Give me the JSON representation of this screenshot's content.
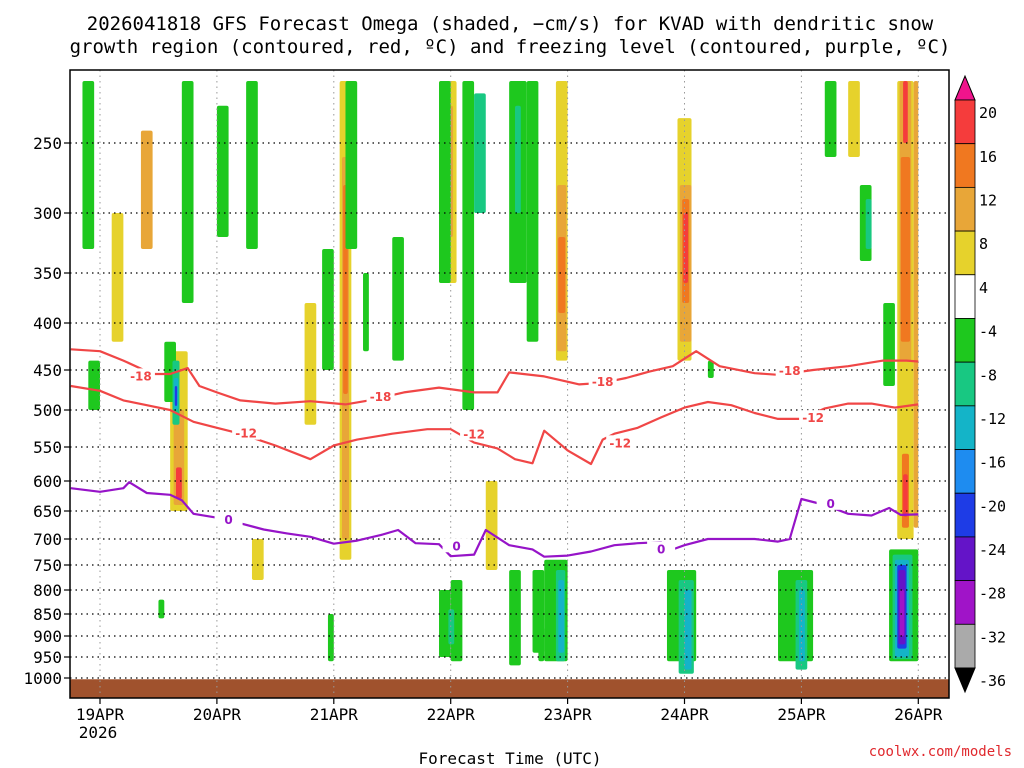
{
  "chart_data": {
    "type": "heatmap",
    "title_lines": [
      "2026041818 GFS Forecast Omega (shaded, −cm/s) for KVAD with dendritic snow",
      "growth region (contoured, red, ºC) and freezing level (contoured, purple, ºC)"
    ],
    "xlabel": "Forecast Time (UTC)",
    "x_ticks": [
      "19APR",
      "20APR",
      "21APR",
      "22APR",
      "23APR",
      "24APR",
      "25APR",
      "26APR"
    ],
    "x_year_label": "2026",
    "x_range_days": [
      -0.25,
      7.0
    ],
    "y_ticks": [
      250,
      300,
      350,
      400,
      450,
      500,
      550,
      600,
      650,
      700,
      750,
      800,
      850,
      900,
      950,
      1000
    ],
    "y_range_hpa": [
      200,
      1000
    ],
    "colorbar": {
      "labels": [
        "20",
        "16",
        "12",
        "8",
        "4",
        "-4",
        "-8",
        "-12",
        "-16",
        "-20",
        "-24",
        "-28",
        "-32",
        "-36"
      ],
      "colors": [
        "#f0148c",
        "#f53c3c",
        "#f07820",
        "#e8a638",
        "#e6d22c",
        "#ffffff",
        "#1ec81e",
        "#18c882",
        "#14b4c8",
        "#1e8cf0",
        "#1e3ce6",
        "#6414c8",
        "#a014c8",
        "#aaaaaa",
        "#000000"
      ]
    },
    "series": [
      {
        "name": "-18 C isotherm",
        "color": "#f04646",
        "label": "-18",
        "points": [
          [
            -0.25,
            428
          ],
          [
            0.0,
            430
          ],
          [
            0.2,
            440
          ],
          [
            0.45,
            455
          ],
          [
            0.6,
            455
          ],
          [
            0.75,
            448
          ],
          [
            0.85,
            470
          ],
          [
            1.0,
            478
          ],
          [
            1.2,
            488
          ],
          [
            1.5,
            492
          ],
          [
            1.8,
            489
          ],
          [
            2.1,
            493
          ],
          [
            2.3,
            488
          ],
          [
            2.6,
            478
          ],
          [
            2.9,
            472
          ],
          [
            3.2,
            478
          ],
          [
            3.4,
            478
          ],
          [
            3.5,
            453
          ],
          [
            3.8,
            458
          ],
          [
            4.1,
            468
          ],
          [
            4.3,
            466
          ],
          [
            4.5,
            460
          ],
          [
            4.7,
            452
          ],
          [
            4.9,
            446
          ],
          [
            5.1,
            430
          ],
          [
            5.3,
            446
          ],
          [
            5.6,
            454
          ],
          [
            5.8,
            456
          ],
          [
            6.1,
            450
          ],
          [
            6.4,
            446
          ],
          [
            6.7,
            440
          ],
          [
            6.9,
            440
          ],
          [
            7.0,
            441
          ]
        ]
      },
      {
        "name": "-12 C isotherm",
        "color": "#f04646",
        "label": "-12",
        "points": [
          [
            -0.25,
            470
          ],
          [
            0.0,
            476
          ],
          [
            0.2,
            488
          ],
          [
            0.4,
            494
          ],
          [
            0.6,
            500
          ],
          [
            0.8,
            516
          ],
          [
            1.0,
            524
          ],
          [
            1.2,
            532
          ],
          [
            1.5,
            548
          ],
          [
            1.8,
            568
          ],
          [
            2.0,
            548
          ],
          [
            2.2,
            540
          ],
          [
            2.5,
            532
          ],
          [
            2.8,
            526
          ],
          [
            3.0,
            526
          ],
          [
            3.2,
            544
          ],
          [
            3.4,
            552
          ],
          [
            3.55,
            568
          ],
          [
            3.7,
            574
          ],
          [
            3.8,
            528
          ],
          [
            4.0,
            555
          ],
          [
            4.2,
            575
          ],
          [
            4.3,
            540
          ],
          [
            4.4,
            532
          ],
          [
            4.6,
            524
          ],
          [
            4.8,
            510
          ],
          [
            5.0,
            497
          ],
          [
            5.2,
            490
          ],
          [
            5.4,
            494
          ],
          [
            5.6,
            504
          ],
          [
            5.8,
            512
          ],
          [
            6.0,
            512
          ],
          [
            6.2,
            498
          ],
          [
            6.4,
            492
          ],
          [
            6.6,
            492
          ],
          [
            6.8,
            497
          ],
          [
            7.0,
            493
          ]
        ]
      },
      {
        "name": "0 C freezing level",
        "color": "#9614c8",
        "label": "0",
        "points": [
          [
            -0.25,
            612
          ],
          [
            0.0,
            618
          ],
          [
            0.2,
            612
          ],
          [
            0.25,
            602
          ],
          [
            0.4,
            620
          ],
          [
            0.6,
            623
          ],
          [
            0.7,
            632
          ],
          [
            0.8,
            655
          ],
          [
            1.0,
            662
          ],
          [
            1.2,
            672
          ],
          [
            1.4,
            683
          ],
          [
            1.6,
            690
          ],
          [
            1.8,
            696
          ],
          [
            2.0,
            709
          ],
          [
            2.2,
            703
          ],
          [
            2.4,
            693
          ],
          [
            2.55,
            684
          ],
          [
            2.7,
            708
          ],
          [
            2.9,
            710
          ],
          [
            3.0,
            733
          ],
          [
            3.2,
            730
          ],
          [
            3.3,
            684
          ],
          [
            3.5,
            712
          ],
          [
            3.7,
            720
          ],
          [
            3.8,
            734
          ],
          [
            4.0,
            732
          ],
          [
            4.2,
            724
          ],
          [
            4.4,
            712
          ],
          [
            4.6,
            708
          ],
          [
            4.8,
            706
          ],
          [
            4.9,
            720
          ],
          [
            5.0,
            712
          ],
          [
            5.2,
            700
          ],
          [
            5.4,
            700
          ],
          [
            5.6,
            700
          ],
          [
            5.8,
            705
          ],
          [
            5.9,
            700
          ],
          [
            6.0,
            630
          ],
          [
            6.2,
            640
          ],
          [
            6.4,
            655
          ],
          [
            6.6,
            658
          ],
          [
            6.75,
            645
          ],
          [
            6.85,
            657
          ],
          [
            7.0,
            656
          ]
        ]
      }
    ],
    "contour_labels": [
      {
        "text": "-18",
        "x": 0.35,
        "p": 458
      },
      {
        "text": "-18",
        "x": 2.4,
        "p": 484
      },
      {
        "text": "-18",
        "x": 4.3,
        "p": 465
      },
      {
        "text": "-18",
        "x": 5.9,
        "p": 451
      },
      {
        "text": "-12",
        "x": 1.25,
        "p": 532
      },
      {
        "text": "-12",
        "x": 3.2,
        "p": 533
      },
      {
        "text": "-12",
        "x": 4.45,
        "p": 545
      },
      {
        "text": "-12",
        "x": 6.1,
        "p": 511
      },
      {
        "text": "0",
        "x": 1.1,
        "p": 666
      },
      {
        "text": "0",
        "x": 3.05,
        "p": 714
      },
      {
        "text": "0",
        "x": 4.8,
        "p": 720
      },
      {
        "text": "0",
        "x": 6.25,
        "p": 638
      }
    ],
    "shaded_cells": [
      {
        "x0": 4.94,
        "x1": 5.06,
        "p0": 230,
        "p1": 440,
        "c": "#e6d22c"
      },
      {
        "x0": 4.96,
        "x1": 5.06,
        "p0": 280,
        "p1": 420,
        "c": "#e8a638"
      },
      {
        "x0": 4.98,
        "x1": 5.04,
        "p0": 290,
        "p1": 380,
        "c": "#f07820"
      },
      {
        "x0": 4.99,
        "x1": 5.03,
        "p0": 300,
        "p1": 360,
        "c": "#f53c3c"
      },
      {
        "x0": 3.9,
        "x1": 4.0,
        "p0": 200,
        "p1": 440,
        "c": "#e6d22c"
      },
      {
        "x0": 3.91,
        "x1": 3.99,
        "p0": 280,
        "p1": 430,
        "c": "#e8a638"
      },
      {
        "x0": 3.92,
        "x1": 3.98,
        "p0": 320,
        "p1": 390,
        "c": "#f07820"
      },
      {
        "x0": 6.82,
        "x1": 6.96,
        "p0": 200,
        "p1": 700,
        "c": "#e6d22c"
      },
      {
        "x0": 6.84,
        "x1": 6.94,
        "p0": 200,
        "p1": 440,
        "c": "#e8a638"
      },
      {
        "x0": 6.85,
        "x1": 6.93,
        "p0": 260,
        "p1": 420,
        "c": "#f07820"
      },
      {
        "x0": 6.86,
        "x1": 6.92,
        "p0": 560,
        "p1": 680,
        "c": "#f07820"
      },
      {
        "x0": 6.87,
        "x1": 6.91,
        "p0": 590,
        "p1": 660,
        "c": "#f53c3c"
      },
      {
        "x0": 6.87,
        "x1": 6.91,
        "p0": 200,
        "p1": 250,
        "c": "#f53c3c"
      },
      {
        "x0": 6.96,
        "x1": 7.0,
        "p0": 200,
        "p1": 680,
        "c": "#e8a638"
      },
      {
        "x0": 2.05,
        "x1": 2.15,
        "p0": 200,
        "p1": 740,
        "c": "#e6d22c"
      },
      {
        "x0": 2.07,
        "x1": 2.13,
        "p0": 260,
        "p1": 700,
        "c": "#e8a638"
      },
      {
        "x0": 2.08,
        "x1": 2.12,
        "p0": 280,
        "p1": 480,
        "c": "#f07820"
      },
      {
        "x0": 0.6,
        "x1": 0.75,
        "p0": 430,
        "p1": 650,
        "c": "#e6d22c"
      },
      {
        "x0": 0.63,
        "x1": 0.72,
        "p0": 500,
        "p1": 640,
        "c": "#e8a638"
      },
      {
        "x0": 0.65,
        "x1": 0.7,
        "p0": 580,
        "p1": 630,
        "c": "#f53c3c"
      },
      {
        "x0": 0.35,
        "x1": 0.45,
        "p0": 240,
        "p1": 330,
        "c": "#e8a638"
      },
      {
        "x0": 2.9,
        "x1": 3.05,
        "p0": 200,
        "p1": 360,
        "c": "#e6d22c"
      },
      {
        "x0": 2.95,
        "x1": 3.02,
        "p0": 220,
        "p1": 320,
        "c": "#e8a638"
      },
      {
        "x0": 1.75,
        "x1": 1.85,
        "p0": 380,
        "p1": 520,
        "c": "#e6d22c"
      },
      {
        "x0": 3.3,
        "x1": 3.4,
        "p0": 600,
        "p1": 760,
        "c": "#e6d22c"
      },
      {
        "x0": 0.1,
        "x1": 0.2,
        "p0": 300,
        "p1": 420,
        "c": "#e6d22c"
      },
      {
        "x0": 1.3,
        "x1": 1.4,
        "p0": 700,
        "p1": 780,
        "c": "#e6d22c"
      },
      {
        "x0": 6.4,
        "x1": 6.5,
        "p0": 200,
        "p1": 260,
        "c": "#e6d22c"
      },
      {
        "x0": 6.75,
        "x1": 7.0,
        "p0": 720,
        "p1": 960,
        "c": "#1ec81e"
      },
      {
        "x0": 6.78,
        "x1": 6.95,
        "p0": 730,
        "p1": 955,
        "c": "#18c882"
      },
      {
        "x0": 6.8,
        "x1": 6.92,
        "p0": 740,
        "p1": 950,
        "c": "#14b4c8"
      },
      {
        "x0": 6.82,
        "x1": 6.9,
        "p0": 750,
        "p1": 930,
        "c": "#1e3ce6"
      },
      {
        "x0": 6.83,
        "x1": 6.89,
        "p0": 760,
        "p1": 920,
        "c": "#6414c8"
      },
      {
        "x0": 6.84,
        "x1": 6.88,
        "p0": 800,
        "p1": 900,
        "c": "#a014c8"
      },
      {
        "x0": 5.8,
        "x1": 6.1,
        "p0": 760,
        "p1": 960,
        "c": "#1ec81e"
      },
      {
        "x0": 5.95,
        "x1": 6.05,
        "p0": 780,
        "p1": 980,
        "c": "#18c882"
      },
      {
        "x0": 5.98,
        "x1": 6.03,
        "p0": 800,
        "p1": 960,
        "c": "#14b4c8"
      },
      {
        "x0": 4.85,
        "x1": 5.1,
        "p0": 760,
        "p1": 960,
        "c": "#1ec81e"
      },
      {
        "x0": 4.95,
        "x1": 5.08,
        "p0": 780,
        "p1": 990,
        "c": "#18c882"
      },
      {
        "x0": 5.0,
        "x1": 5.06,
        "p0": 800,
        "p1": 980,
        "c": "#14b4c8"
      },
      {
        "x0": 3.8,
        "x1": 4.0,
        "p0": 740,
        "p1": 960,
        "c": "#1ec81e"
      },
      {
        "x0": 3.9,
        "x1": 3.98,
        "p0": 760,
        "p1": 960,
        "c": "#18c882"
      },
      {
        "x0": 3.92,
        "x1": 3.97,
        "p0": 780,
        "p1": 940,
        "c": "#14b4c8"
      },
      {
        "x0": 3.5,
        "x1": 3.6,
        "p0": 760,
        "p1": 970,
        "c": "#1ec81e"
      },
      {
        "x0": 3.7,
        "x1": 3.8,
        "p0": 760,
        "p1": 940,
        "c": "#1ec81e"
      },
      {
        "x0": 3.0,
        "x1": 3.1,
        "p0": 780,
        "p1": 960,
        "c": "#1ec81e"
      },
      {
        "x0": 2.9,
        "x1": 3.0,
        "p0": 200,
        "p1": 360,
        "c": "#1ec81e"
      },
      {
        "x0": 3.1,
        "x1": 3.2,
        "p0": 200,
        "p1": 500,
        "c": "#1ec81e"
      },
      {
        "x0": 3.2,
        "x1": 3.3,
        "p0": 210,
        "p1": 300,
        "c": "#18c882"
      },
      {
        "x0": 3.5,
        "x1": 3.65,
        "p0": 200,
        "p1": 360,
        "c": "#1ec81e"
      },
      {
        "x0": 3.55,
        "x1": 3.6,
        "p0": 220,
        "p1": 300,
        "c": "#18c882"
      },
      {
        "x0": 3.65,
        "x1": 3.75,
        "p0": 200,
        "p1": 420,
        "c": "#1ec81e"
      },
      {
        "x0": 2.1,
        "x1": 2.2,
        "p0": 200,
        "p1": 330,
        "c": "#1ec81e"
      },
      {
        "x0": 2.25,
        "x1": 2.3,
        "p0": 350,
        "p1": 430,
        "c": "#1ec81e"
      },
      {
        "x0": 1.9,
        "x1": 2.0,
        "p0": 330,
        "p1": 450,
        "c": "#1ec81e"
      },
      {
        "x0": 1.25,
        "x1": 1.35,
        "p0": 200,
        "p1": 330,
        "c": "#1ec81e"
      },
      {
        "x0": 1.0,
        "x1": 1.1,
        "p0": 220,
        "p1": 320,
        "c": "#1ec81e"
      },
      {
        "x0": 0.7,
        "x1": 0.8,
        "p0": 200,
        "p1": 380,
        "c": "#1ec81e"
      },
      {
        "x0": -0.15,
        "x1": -0.05,
        "p0": 200,
        "p1": 330,
        "c": "#1ec81e"
      },
      {
        "x0": 0.55,
        "x1": 0.65,
        "p0": 420,
        "p1": 490,
        "c": "#1ec81e"
      },
      {
        "x0": 0.62,
        "x1": 0.68,
        "p0": 440,
        "p1": 520,
        "c": "#18c882"
      },
      {
        "x0": 0.63,
        "x1": 0.67,
        "p0": 460,
        "p1": 500,
        "c": "#14b4c8"
      },
      {
        "x0": 0.64,
        "x1": 0.66,
        "p0": 470,
        "p1": 495,
        "c": "#1e3ce6"
      },
      {
        "x0": -0.1,
        "x1": 0.0,
        "p0": 440,
        "p1": 500,
        "c": "#1ec81e"
      },
      {
        "x0": 2.5,
        "x1": 2.6,
        "p0": 320,
        "p1": 440,
        "c": "#1ec81e"
      },
      {
        "x0": 6.2,
        "x1": 6.3,
        "p0": 200,
        "p1": 260,
        "c": "#1ec81e"
      },
      {
        "x0": 6.5,
        "x1": 6.6,
        "p0": 280,
        "p1": 340,
        "c": "#1ec81e"
      },
      {
        "x0": 6.55,
        "x1": 6.6,
        "p0": 290,
        "p1": 330,
        "c": "#18c882"
      },
      {
        "x0": 6.7,
        "x1": 6.8,
        "p0": 380,
        "p1": 470,
        "c": "#1ec81e"
      },
      {
        "x0": 1.95,
        "x1": 2.0,
        "p0": 850,
        "p1": 960,
        "c": "#1ec81e"
      },
      {
        "x0": 2.9,
        "x1": 3.0,
        "p0": 800,
        "p1": 950,
        "c": "#1ec81e"
      },
      {
        "x0": 2.98,
        "x1": 3.03,
        "p0": 840,
        "p1": 920,
        "c": "#18c882"
      },
      {
        "x0": 5.2,
        "x1": 5.25,
        "p0": 440,
        "p1": 460,
        "c": "#1ec81e"
      },
      {
        "x0": 0.5,
        "x1": 0.55,
        "p0": 820,
        "p1": 860,
        "c": "#1ec81e"
      },
      {
        "x0": 3.75,
        "x1": 3.8,
        "p0": 880,
        "p1": 960,
        "c": "#1ec81e"
      }
    ],
    "ground_band": {
      "p0": 1003,
      "p1": 1022,
      "color": "#a0522d"
    }
  },
  "credit": "coolwx.com/models"
}
